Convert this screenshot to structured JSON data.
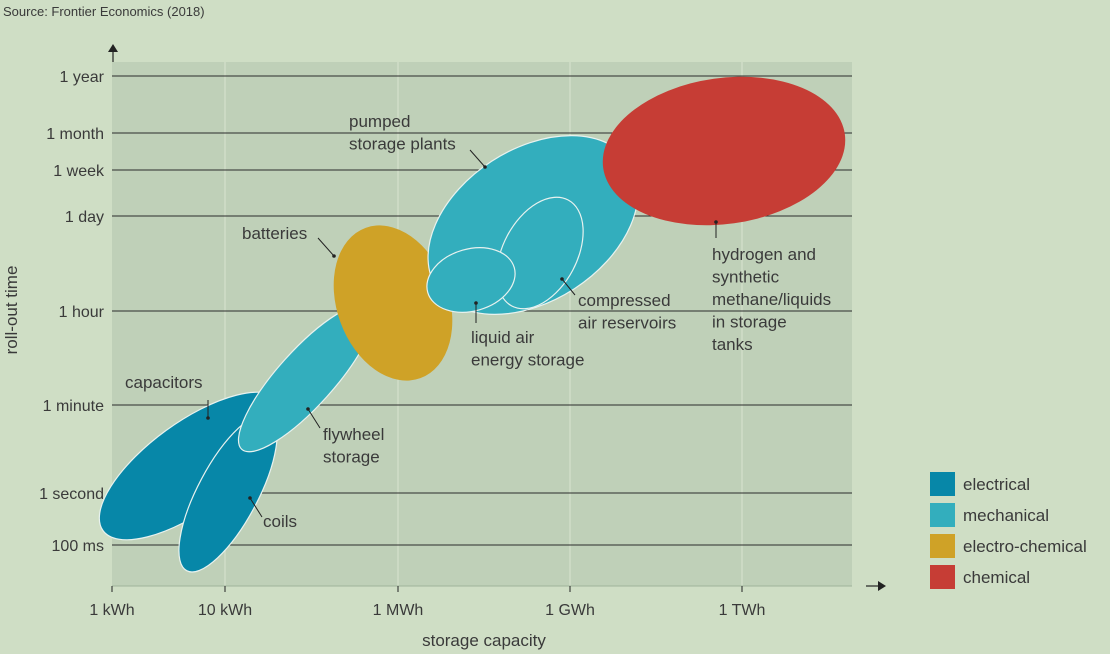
{
  "source": "Source: Frontier Economics (2018)",
  "chart_data": {
    "type": "scatter",
    "xlabel": "storage capacity",
    "ylabel": "roll-out time",
    "x_ticks": [
      "1 kWh",
      "10 kWh",
      "1 MWh",
      "1 GWh",
      "1 TWh"
    ],
    "y_ticks": [
      "1 year",
      "1 month",
      "1 week",
      "1 day",
      "1 hour",
      "1 minute",
      "1 second",
      "100 ms"
    ],
    "grid": true,
    "legend_position": "right",
    "categories": [
      {
        "name": "electrical",
        "color": "#0787a8"
      },
      {
        "name": "mechanical",
        "color": "#33aebd"
      },
      {
        "name": "electro-chemical",
        "color": "#cfa227"
      },
      {
        "name": "chemical",
        "color": "#c63d35"
      }
    ],
    "technologies": [
      {
        "name": "capacitors",
        "category": "electrical",
        "label": [
          "capacitors"
        ],
        "capacity_range": [
          "1 kWh",
          "100 kWh"
        ],
        "rollout_range": [
          "100 ms",
          "1 minute"
        ]
      },
      {
        "name": "coils",
        "category": "electrical",
        "label": [
          "coils"
        ],
        "capacity_range": [
          "3 kWh",
          "50 kWh"
        ],
        "rollout_range": [
          "100 ms",
          "1 minute"
        ]
      },
      {
        "name": "flywheel storage",
        "category": "mechanical",
        "label": [
          "flywheel",
          "storage"
        ],
        "capacity_range": [
          "10 kWh",
          "1 MWh"
        ],
        "rollout_range": [
          "1 second",
          "1 hour"
        ]
      },
      {
        "name": "batteries",
        "category": "electro-chemical",
        "label": [
          "batteries"
        ],
        "capacity_range": [
          "1 MWh",
          "10 MWh"
        ],
        "rollout_range": [
          "1 minute",
          "1 day"
        ]
      },
      {
        "name": "pumped storage plants",
        "category": "mechanical",
        "label": [
          "pumped",
          "storage plants"
        ],
        "capacity_range": [
          "10 MWh",
          "100 GWh"
        ],
        "rollout_range": [
          "1 hour",
          "1 month"
        ]
      },
      {
        "name": "compressed air reservoirs",
        "category": "mechanical",
        "label": [
          "compressed",
          "air reservoirs"
        ],
        "capacity_range": [
          "100 MWh",
          "10 GWh"
        ],
        "rollout_range": [
          "1 hour",
          "1 day"
        ]
      },
      {
        "name": "liquid air energy storage",
        "category": "mechanical",
        "label": [
          "liquid air",
          "energy storage"
        ],
        "capacity_range": [
          "10 MWh",
          "1 GWh"
        ],
        "rollout_range": [
          "1 hour",
          "1 day"
        ]
      },
      {
        "name": "hydrogen and synthetic methane/liquids in storage tanks",
        "category": "chemical",
        "label": [
          "hydrogen and",
          "synthetic",
          "methane/liquids",
          "in storage",
          "tanks"
        ],
        "capacity_range": [
          "10 GWh",
          "10 TWh"
        ],
        "rollout_range": [
          "1 day",
          "1 year"
        ]
      }
    ]
  }
}
